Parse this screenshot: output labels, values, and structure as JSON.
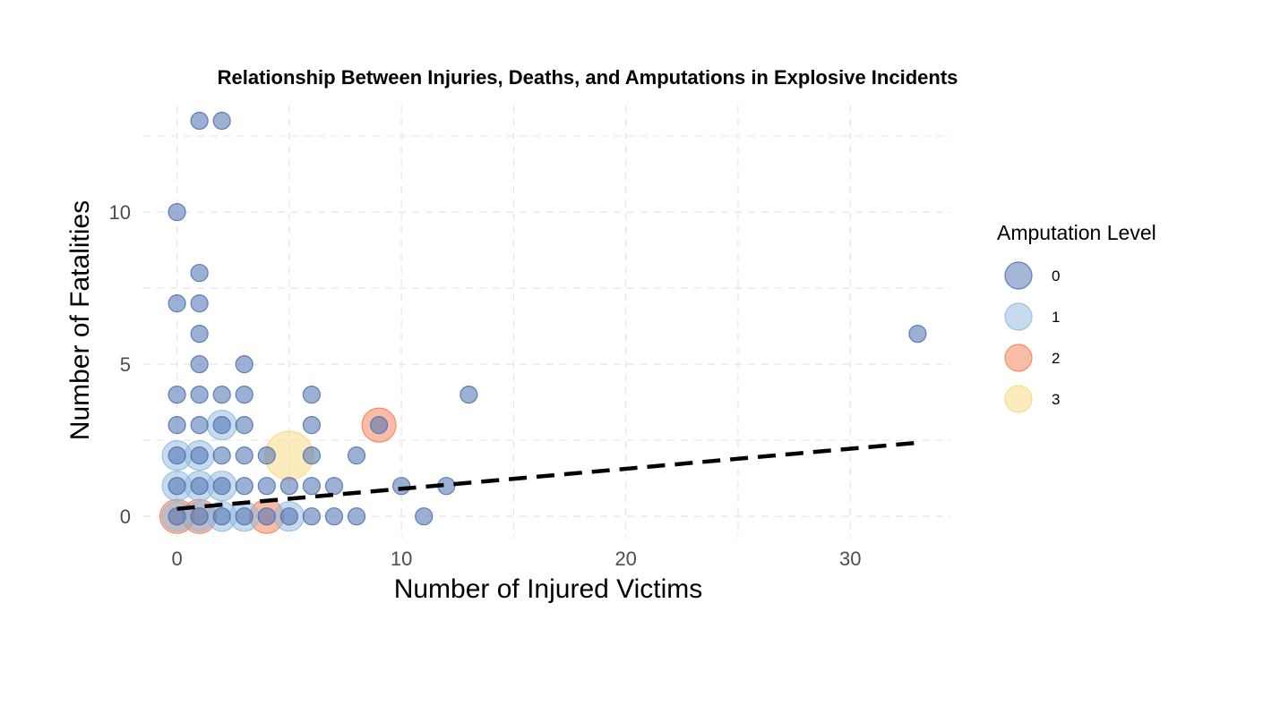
{
  "chart_data": {
    "type": "scatter",
    "title": "Relationship Between Injuries, Deaths, and Amputations in Explosive Incidents",
    "xlabel": "Number of Injured Victims",
    "ylabel": "Number of Fatalities",
    "xlim": [
      -1.5,
      34.5
    ],
    "ylim": [
      -0.7,
      13.5
    ],
    "x_ticks": [
      "0",
      "10",
      "20",
      "30"
    ],
    "x_tick_values": [
      0,
      10,
      20,
      30
    ],
    "y_ticks": [
      "0",
      "5",
      "10"
    ],
    "y_tick_values": [
      0,
      5,
      10
    ],
    "grid": true,
    "legend": {
      "title": "Amputation Level",
      "placement": "right",
      "entries": [
        {
          "label": "0",
          "color": "#4a6fb0"
        },
        {
          "label": "1",
          "color": "#8fb8de"
        },
        {
          "label": "2",
          "color": "#f47c50"
        },
        {
          "label": "3",
          "color": "#f8d77c"
        }
      ]
    },
    "trend_line": {
      "style": "dashed",
      "color": "#000000",
      "x": [
        0,
        33
      ],
      "y": [
        0.25,
        2.42
      ]
    },
    "series": [
      {
        "name": "0",
        "color": "#4a6fb0",
        "points": [
          [
            1,
            13
          ],
          [
            2,
            13
          ],
          [
            0,
            10
          ],
          [
            1,
            8
          ],
          [
            0,
            7
          ],
          [
            1,
            7
          ],
          [
            1,
            6
          ],
          [
            1,
            5
          ],
          [
            3,
            5
          ],
          [
            0,
            4
          ],
          [
            1,
            4
          ],
          [
            2,
            4
          ],
          [
            3,
            4
          ],
          [
            6,
            4
          ],
          [
            13,
            4
          ],
          [
            33,
            6
          ],
          [
            0,
            3
          ],
          [
            1,
            3
          ],
          [
            2,
            3
          ],
          [
            3,
            3
          ],
          [
            6,
            3
          ],
          [
            9,
            3
          ],
          [
            0,
            2
          ],
          [
            1,
            2
          ],
          [
            2,
            2
          ],
          [
            3,
            2
          ],
          [
            4,
            2
          ],
          [
            6,
            2
          ],
          [
            8,
            2
          ],
          [
            0,
            1
          ],
          [
            1,
            1
          ],
          [
            2,
            1
          ],
          [
            3,
            1
          ],
          [
            4,
            1
          ],
          [
            5,
            1
          ],
          [
            6,
            1
          ],
          [
            7,
            1
          ],
          [
            10,
            1
          ],
          [
            12,
            1
          ],
          [
            0,
            0
          ],
          [
            1,
            0
          ],
          [
            2,
            0
          ],
          [
            3,
            0
          ],
          [
            4,
            0
          ],
          [
            5,
            0
          ],
          [
            6,
            0
          ],
          [
            7,
            0
          ],
          [
            8,
            0
          ],
          [
            11,
            0
          ]
        ]
      },
      {
        "name": "1",
        "color": "#8fb8de",
        "points": [
          [
            2,
            3
          ],
          [
            0,
            2
          ],
          [
            1,
            2
          ],
          [
            0,
            1
          ],
          [
            1,
            1
          ],
          [
            2,
            1
          ],
          [
            0,
            0
          ],
          [
            1,
            0
          ],
          [
            2,
            0
          ],
          [
            3,
            0
          ],
          [
            5,
            0
          ]
        ]
      },
      {
        "name": "2",
        "color": "#f47c50",
        "points": [
          [
            9,
            3
          ],
          [
            4,
            0
          ],
          [
            0,
            0
          ],
          [
            1,
            0
          ]
        ]
      },
      {
        "name": "3",
        "color": "#f8d77c",
        "points": [
          [
            5,
            2
          ]
        ]
      }
    ]
  }
}
